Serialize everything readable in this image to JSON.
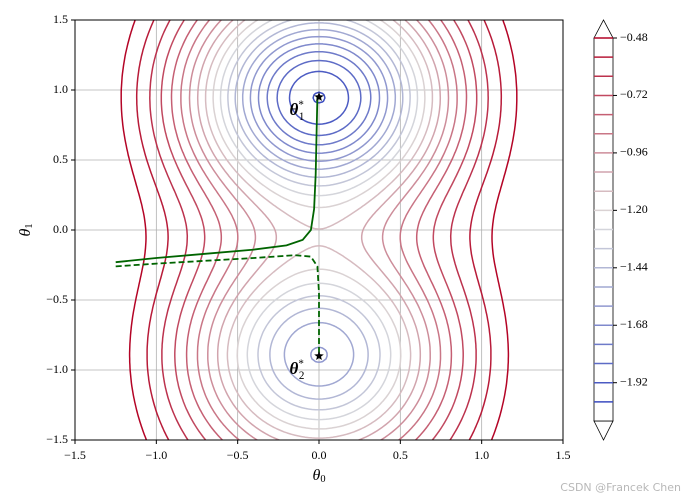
{
  "chart_data": {
    "type": "contour",
    "xlabel": {
      "symbol": "θ",
      "sub": "0"
    },
    "ylabel": {
      "symbol": "θ",
      "sub": "1"
    },
    "xlim": [
      -1.5,
      1.5
    ],
    "ylim": [
      -1.5,
      1.5
    ],
    "xticks": [
      {
        "value": -1.5,
        "label": "−1.5"
      },
      {
        "value": -1.0,
        "label": "−1.0"
      },
      {
        "value": -0.5,
        "label": "−0.5"
      },
      {
        "value": 0,
        "label": "0.0"
      },
      0.5,
      {
        "value": 1.0,
        "label": "1.0"
      },
      1.5
    ],
    "yticks": [
      {
        "value": -1.5,
        "label": "−1.5"
      },
      {
        "value": -1.0,
        "label": "−1.0"
      },
      {
        "value": -0.5,
        "label": "−0.5"
      },
      {
        "value": 0,
        "label": "0.0"
      },
      0.5,
      {
        "value": 1.0,
        "label": "1.0"
      },
      1.5
    ],
    "grid": true,
    "levels": [
      -2.0,
      -1.92,
      -1.84,
      -1.76,
      -1.68,
      -1.6,
      -1.52,
      -1.44,
      -1.36,
      -1.28,
      -1.2,
      -1.12,
      -1.04,
      -0.96,
      -0.88,
      -0.8,
      -0.72,
      -0.64,
      -0.56,
      -0.48
    ],
    "colormap": [
      "#3b4cc0",
      "#dcdddd",
      "#b40426"
    ],
    "clim": [
      -2.08,
      -0.48
    ],
    "cticks": [
      {
        "value": -0.48,
        "label": "−0.48"
      },
      {
        "value": -0.72,
        "label": "−0.72"
      },
      {
        "value": -0.96,
        "label": "−0.96"
      },
      {
        "value": -1.2,
        "label": "−1.20"
      },
      {
        "value": -1.44,
        "label": "−1.44"
      },
      {
        "value": -1.68,
        "label": "−1.68"
      },
      {
        "value": -1.92,
        "label": "−1.92"
      }
    ],
    "series": [
      {
        "color": "#006400",
        "linestyle": "solid",
        "x": [
          -1.25,
          -1.0,
          -0.7,
          -0.4,
          -0.2,
          -0.1,
          -0.05,
          -0.03,
          -0.02,
          -0.015,
          -0.01
        ],
        "y": [
          -0.23,
          -0.2,
          -0.17,
          -0.14,
          -0.11,
          -0.07,
          0.0,
          0.15,
          0.4,
          0.7,
          0.95
        ]
      },
      {
        "color": "#006400",
        "linestyle": "dashed",
        "x": [
          -1.25,
          -1.0,
          -0.7,
          -0.4,
          -0.15,
          -0.05,
          -0.01,
          0.0,
          0.0,
          0.0
        ],
        "y": [
          -0.26,
          -0.24,
          -0.22,
          -0.2,
          -0.18,
          -0.19,
          -0.26,
          -0.45,
          -0.7,
          -0.9
        ]
      }
    ],
    "markers": [
      {
        "x": 0.0,
        "y": 0.95,
        "label": {
          "symbol": "θ",
          "sup": "*",
          "sub": "1"
        }
      },
      {
        "x": 0.0,
        "y": -0.9,
        "label": {
          "symbol": "θ",
          "sup": "*",
          "sub": "2"
        }
      }
    ],
    "watermark": "CSDN @Francek Chen"
  }
}
